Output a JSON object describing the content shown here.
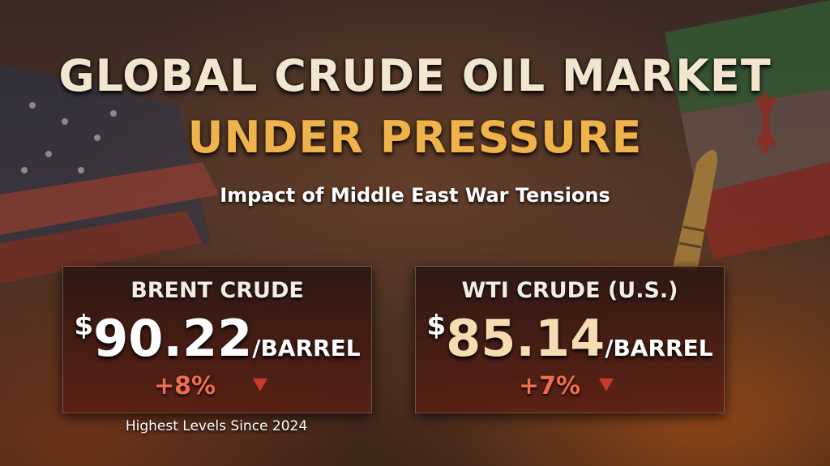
{
  "header": {
    "title_line1": "GLOBAL CRUDE OIL MARKET",
    "title_line2": "UNDER PRESSURE",
    "subtitle": "Impact of Middle East War Tensions"
  },
  "cards": [
    {
      "name": "BRENT CRUDE",
      "currency": "$",
      "price": "90.22",
      "unit": "/BARREL",
      "change": "+8%"
    },
    {
      "name": "WTI CRUDE (U.S.)",
      "currency": "$",
      "price": "85.14",
      "unit": "/BARREL",
      "change": "+7%"
    }
  ],
  "footer": {
    "note": "Highest Levels Since 2024"
  }
}
